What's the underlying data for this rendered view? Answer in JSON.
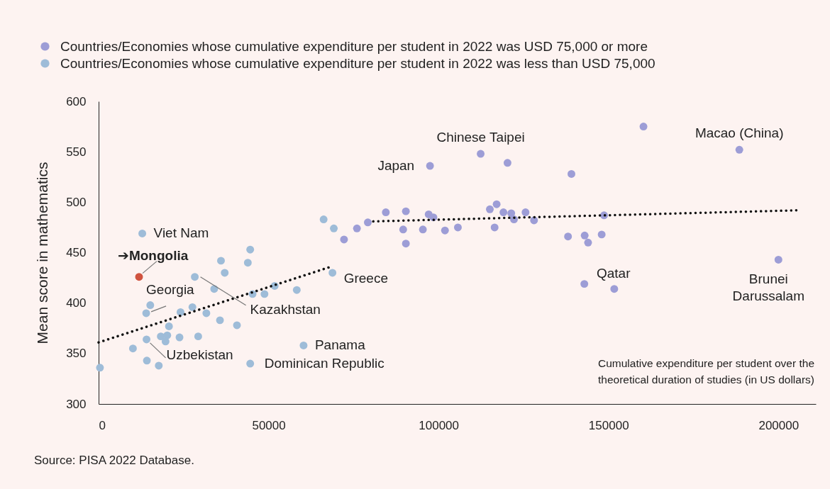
{
  "chart_data": {
    "type": "scatter",
    "xlabel": "Cumulative expenditure per student over the theoretical duration of studies (in US dollars)",
    "ylabel": "Mean score in mathematics",
    "xlim": [
      0,
      211000
    ],
    "xticks": [
      0,
      50000,
      100000,
      150000,
      200000
    ],
    "ylim": [
      300,
      600
    ],
    "yticks": [
      300,
      350,
      400,
      450,
      500,
      550,
      600
    ],
    "marker": "circle",
    "legend": "top left",
    "series": [
      {
        "name": "Countries/Economies whose cumulative expenditure per student in 2022 was USD 75,000 or more",
        "color": "#9d9dd6",
        "x": [
          72200,
          76000,
          79200,
          84500,
          90400,
          89600,
          90400,
          95400,
          97100,
          98500,
          97500,
          101900,
          105700,
          112400,
          115100,
          117100,
          116500,
          119100,
          120300,
          121400,
          122200,
          125600,
          128100,
          138100,
          139100,
          143000,
          144000,
          148000,
          148700,
          142900,
          151700,
          160300,
          188500,
          200000
        ],
        "values": [
          463,
          474,
          480,
          490,
          491,
          473,
          459,
          473,
          488,
          485,
          536,
          472,
          475,
          548,
          493,
          498,
          475,
          490,
          539,
          489,
          483,
          490,
          482,
          466,
          528,
          467,
          460,
          468,
          487,
          419,
          414,
          575,
          552,
          443
        ]
      },
      {
        "name": "Countries/Economies whose cumulative expenditure per student in 2022 was less than USD 75,000",
        "color": "#9ebcd8",
        "x": [
          12850,
          15200,
          14000,
          14100,
          10100,
          14200,
          17700,
          400,
          18300,
          20200,
          19700,
          20700,
          23800,
          24100,
          27600,
          31700,
          29300,
          28300,
          34000,
          36000,
          37100,
          35700,
          40700,
          44600,
          43900,
          45300,
          48800,
          51800,
          58300,
          60300,
          44600,
          66200,
          69200,
          68800
        ],
        "values": [
          469,
          398,
          390,
          364,
          355,
          343,
          338,
          336,
          367,
          368,
          362,
          377,
          366,
          391,
          396,
          390,
          367,
          426,
          414,
          442,
          430,
          383,
          378,
          453,
          440,
          409,
          409,
          417,
          413,
          358,
          340,
          483,
          474,
          430
        ]
      },
      {
        "color": "#d0533f",
        "x": [
          11900
        ],
        "values": [
          426
        ]
      },
      {
        "type": "line",
        "color": "#111111",
        "line_style": "dotted",
        "marker": "none",
        "x": [
          0,
          68300
        ],
        "values": [
          361,
          436
        ]
      },
      {
        "type": "line",
        "color": "#111111",
        "line_style": "dotted",
        "marker": "none",
        "x": [
          80800,
          205800
        ],
        "values": [
          481,
          492
        ]
      }
    ],
    "annotations": [
      {
        "text": "Viet Nam",
        "x": 12850,
        "y": 469
      },
      {
        "text": "➔Mongolia",
        "x": 11900,
        "y": 426
      },
      {
        "text": "Georgia",
        "x": 14000,
        "y": 390
      },
      {
        "text": "Uzbekistan",
        "x": 14100,
        "y": 364
      },
      {
        "text": "Kazakhstan",
        "x": 28300,
        "y": 426
      },
      {
        "text": "Greece",
        "x": 68800,
        "y": 430
      },
      {
        "text": "Panama",
        "x": 60300,
        "y": 358
      },
      {
        "text": "Dominican Republic",
        "x": 44600,
        "y": 340
      },
      {
        "text": "Japan",
        "x": 97500,
        "y": 536
      },
      {
        "text": "Chinese Taipei",
        "x": 112400,
        "y": 548
      },
      {
        "text": "Macao (China)",
        "x": 188500,
        "y": 552
      },
      {
        "text": "Qatar",
        "x": 142900,
        "y": 419
      },
      {
        "text": "Brunei Darussalam",
        "x": 200000,
        "y": 443
      },
      "Source: PISA 2022 Database."
    ]
  }
}
